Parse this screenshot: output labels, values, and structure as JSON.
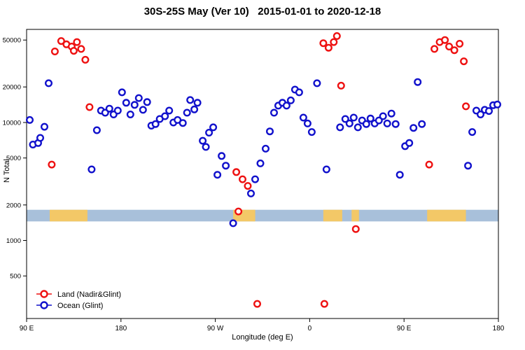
{
  "chart_data": {
    "type": "scatter",
    "title": "30S-25S May (Ver 10)   2015-01-01 to 2020-12-18",
    "xlabel": "Longitude (deg E)",
    "ylabel": "N Total",
    "x_scale": "linear",
    "y_scale": "log",
    "grid": false,
    "xlim": [
      90,
      540
    ],
    "ylim": [
      218,
      61500
    ],
    "x_ticks": [
      {
        "value": 90,
        "label": "90 E"
      },
      {
        "value": 180,
        "label": "180"
      },
      {
        "value": 270,
        "label": "90 W"
      },
      {
        "value": 360,
        "label": "0"
      },
      {
        "value": 450,
        "label": "90 E"
      },
      {
        "value": 540,
        "label": "180"
      }
    ],
    "y_ticks": [
      500,
      1000,
      2000,
      5000,
      10000,
      20000,
      50000
    ],
    "legend_position": "bottom-left",
    "band": {
      "description": "surface-type strip: ocean with land segments",
      "y_range": [
        1450,
        1820
      ],
      "ocean_color": "#a8c0da",
      "land_color": "#f3c867",
      "land_segments": [
        [
          112,
          148
        ],
        [
          287,
          308
        ],
        [
          373,
          391
        ],
        [
          400,
          407
        ],
        [
          472,
          509
        ]
      ]
    },
    "series": [
      {
        "name": "Land (Nadir&Glint)",
        "color": "#ee1111",
        "points": [
          [
            114,
            4400
          ],
          [
            117,
            40000
          ],
          [
            123,
            49000
          ],
          [
            128,
            46000
          ],
          [
            133,
            44000
          ],
          [
            135,
            40500
          ],
          [
            138,
            48000
          ],
          [
            142,
            42000
          ],
          [
            146,
            34000
          ],
          [
            150,
            13500
          ],
          [
            290,
            3800
          ],
          [
            296,
            3300
          ],
          [
            301,
            2900
          ],
          [
            292,
            1760
          ],
          [
            310,
            290
          ],
          [
            374,
            290
          ],
          [
            373,
            47000
          ],
          [
            378,
            43000
          ],
          [
            383,
            48000
          ],
          [
            386,
            54000
          ],
          [
            390,
            20500
          ],
          [
            404,
            1250
          ],
          [
            474,
            4400
          ],
          [
            479,
            42000
          ],
          [
            484,
            48000
          ],
          [
            489,
            50000
          ],
          [
            493,
            44000
          ],
          [
            498,
            41000
          ],
          [
            503,
            46500
          ],
          [
            507,
            33000
          ],
          [
            509,
            13700
          ]
        ]
      },
      {
        "name": "Ocean (Glint)",
        "color": "#1111cc",
        "points": [
          [
            93,
            10500
          ],
          [
            96,
            6500
          ],
          [
            101,
            6700
          ],
          [
            103,
            7400
          ],
          [
            107,
            9200
          ],
          [
            111,
            21500
          ],
          [
            152,
            4000
          ],
          [
            157,
            8600
          ],
          [
            161,
            12600
          ],
          [
            165,
            12100
          ],
          [
            169,
            13100
          ],
          [
            173,
            11700
          ],
          [
            177,
            12600
          ],
          [
            181,
            18000
          ],
          [
            185,
            14700
          ],
          [
            189,
            11700
          ],
          [
            193,
            14100
          ],
          [
            197,
            16100
          ],
          [
            201,
            12800
          ],
          [
            205,
            14900
          ],
          [
            209,
            9400
          ],
          [
            213,
            9700
          ],
          [
            217,
            10700
          ],
          [
            222,
            11300
          ],
          [
            226,
            12600
          ],
          [
            230,
            10000
          ],
          [
            234,
            10500
          ],
          [
            239,
            9900
          ],
          [
            243,
            12100
          ],
          [
            246,
            15500
          ],
          [
            250,
            12900
          ],
          [
            253,
            14700
          ],
          [
            258,
            7000
          ],
          [
            261,
            6200
          ],
          [
            264,
            8200
          ],
          [
            268,
            9100
          ],
          [
            272,
            3600
          ],
          [
            276,
            5200
          ],
          [
            280,
            4300
          ],
          [
            287,
            1400
          ],
          [
            304,
            2500
          ],
          [
            308,
            3300
          ],
          [
            313,
            4500
          ],
          [
            318,
            6000
          ],
          [
            322,
            8400
          ],
          [
            326,
            12100
          ],
          [
            330,
            13900
          ],
          [
            334,
            14700
          ],
          [
            338,
            13900
          ],
          [
            342,
            15400
          ],
          [
            346,
            19000
          ],
          [
            350,
            18000
          ],
          [
            354,
            11000
          ],
          [
            358,
            9800
          ],
          [
            362,
            8300
          ],
          [
            367,
            21500
          ],
          [
            376,
            4000
          ],
          [
            389,
            9100
          ],
          [
            394,
            10700
          ],
          [
            398,
            9800
          ],
          [
            402,
            11000
          ],
          [
            406,
            9100
          ],
          [
            410,
            10400
          ],
          [
            414,
            9700
          ],
          [
            418,
            10800
          ],
          [
            422,
            9800
          ],
          [
            426,
            10400
          ],
          [
            430,
            11300
          ],
          [
            434,
            9800
          ],
          [
            438,
            11900
          ],
          [
            442,
            9700
          ],
          [
            446,
            3600
          ],
          [
            451,
            6300
          ],
          [
            455,
            6700
          ],
          [
            459,
            9000
          ],
          [
            463,
            22000
          ],
          [
            467,
            9700
          ],
          [
            511,
            4300
          ],
          [
            515,
            8300
          ],
          [
            519,
            12600
          ],
          [
            523,
            11700
          ],
          [
            527,
            12800
          ],
          [
            531,
            12500
          ],
          [
            535,
            14000
          ],
          [
            539,
            14200
          ]
        ]
      }
    ]
  }
}
